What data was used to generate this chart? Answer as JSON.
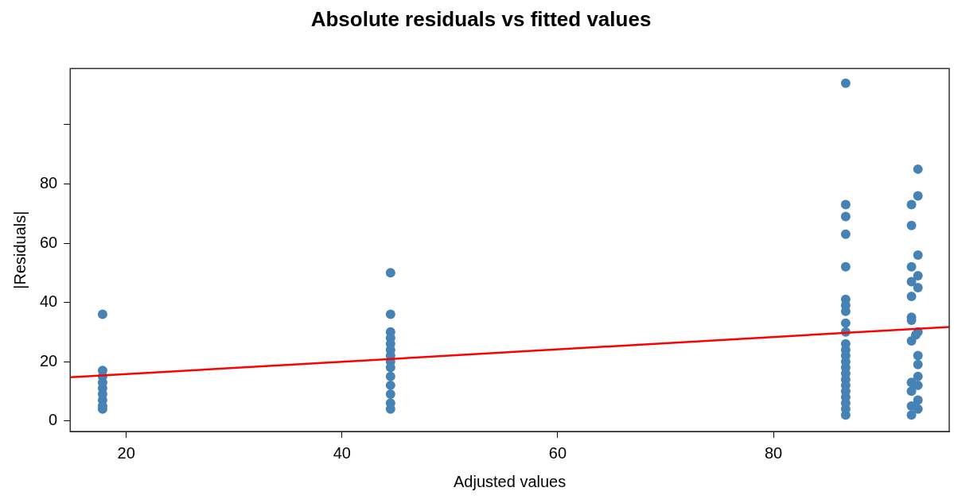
{
  "chart_data": {
    "type": "scatter",
    "title": "Absolute residuals vs fitted values",
    "xlabel": "Adjusted values",
    "ylabel": "|Residuals|",
    "xlim": [
      14.8,
      96.3
    ],
    "xticks": [
      20,
      40,
      60,
      80
    ],
    "ylim": [
      -3.6,
      119
    ],
    "yticks": [
      0,
      20,
      40,
      60,
      80,
      {
        "value": 100,
        "label": null
      }
    ],
    "grid": false,
    "legend": false,
    "marker": "circle",
    "series": [
      {
        "color": "#4682b4",
        "x": [
          17.8,
          17.8,
          17.8,
          17.8,
          17.8,
          17.8,
          17.8,
          17.8,
          17.8,
          44.5,
          44.5,
          44.5,
          44.5,
          44.5,
          44.5,
          44.5,
          44.5,
          44.5,
          44.5,
          44.5,
          44.5,
          44.5,
          44.5,
          86.7,
          86.7,
          86.7,
          86.7,
          86.7,
          86.7,
          86.7,
          86.7,
          86.7,
          86.7,
          86.7,
          86.7,
          86.7,
          86.7,
          86.7,
          86.7,
          86.7,
          86.7,
          86.7,
          86.7,
          86.7,
          86.7,
          86.7,
          93.4,
          93.4,
          92.8,
          92.8,
          93.4,
          92.8,
          93.4,
          92.8,
          93.4,
          92.8,
          92.8,
          92.8,
          93.4,
          92.8,
          93.2,
          93.4,
          93.4,
          93.4,
          92.8,
          93.4,
          92.8,
          93.4,
          92.8,
          93.4,
          92.8
        ],
        "values": [
          36,
          17,
          15,
          13,
          11,
          9,
          7,
          5,
          4,
          50,
          36,
          30,
          28,
          26,
          24,
          22,
          20,
          18,
          15,
          12,
          9,
          6,
          4,
          114,
          73,
          69,
          63,
          52,
          41,
          39,
          37,
          33,
          30,
          26,
          24,
          22,
          20,
          18,
          16,
          14,
          12,
          10,
          8,
          6,
          4,
          2,
          85,
          76,
          73,
          66,
          56,
          52,
          49,
          47,
          45,
          42,
          35,
          34,
          30,
          27,
          29,
          22,
          19,
          15,
          13,
          12,
          10,
          7,
          5,
          4,
          2
        ]
      },
      {
        "type": "line",
        "color": "#ff0000",
        "marker": "none",
        "x": [
          14.8,
          96.3
        ],
        "values": [
          14.7,
          31.7
        ]
      }
    ]
  }
}
